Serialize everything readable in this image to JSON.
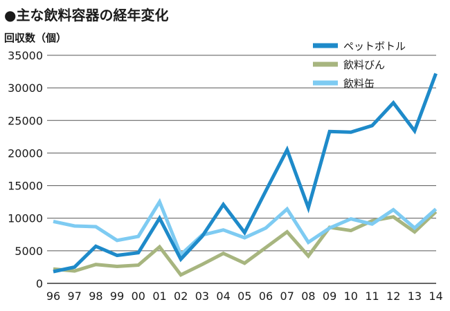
{
  "chart_data": {
    "type": "line",
    "title": "●主な飲料容器の経年変化",
    "ylabel": "回収数（個）",
    "xlabel": "",
    "categories": [
      "96",
      "97",
      "98",
      "99",
      "00",
      "01",
      "02",
      "03",
      "04",
      "05",
      "06",
      "07",
      "08",
      "09",
      "10",
      "11",
      "12",
      "13",
      "14"
    ],
    "ylim": [
      0,
      35000
    ],
    "yticks": [
      0,
      5000,
      10000,
      15000,
      20000,
      25000,
      30000,
      35000
    ],
    "grid": "horizontal",
    "legend_position": "top-right",
    "series": [
      {
        "name": "ペットボトル",
        "color": "#1e8ac9",
        "values": [
          1800,
          2500,
          5700,
          4300,
          4700,
          10000,
          3700,
          7200,
          12100,
          7800,
          14200,
          20500,
          11600,
          23300,
          23200,
          24200,
          27700,
          23400,
          32200
        ]
      },
      {
        "name": "飲料びん",
        "color": "#a7b57f",
        "values": [
          2200,
          1900,
          2900,
          2600,
          2800,
          5600,
          1300,
          2900,
          4600,
          3100,
          5500,
          7900,
          4200,
          8600,
          8100,
          9600,
          10200,
          7900,
          11000
        ]
      },
      {
        "name": "飲料缶",
        "color": "#7ecbf2",
        "values": [
          9500,
          8800,
          8700,
          6600,
          7200,
          12500,
          4400,
          7400,
          8200,
          7000,
          8500,
          11400,
          6300,
          8500,
          9900,
          9100,
          11300,
          8500,
          11400
        ]
      }
    ]
  }
}
